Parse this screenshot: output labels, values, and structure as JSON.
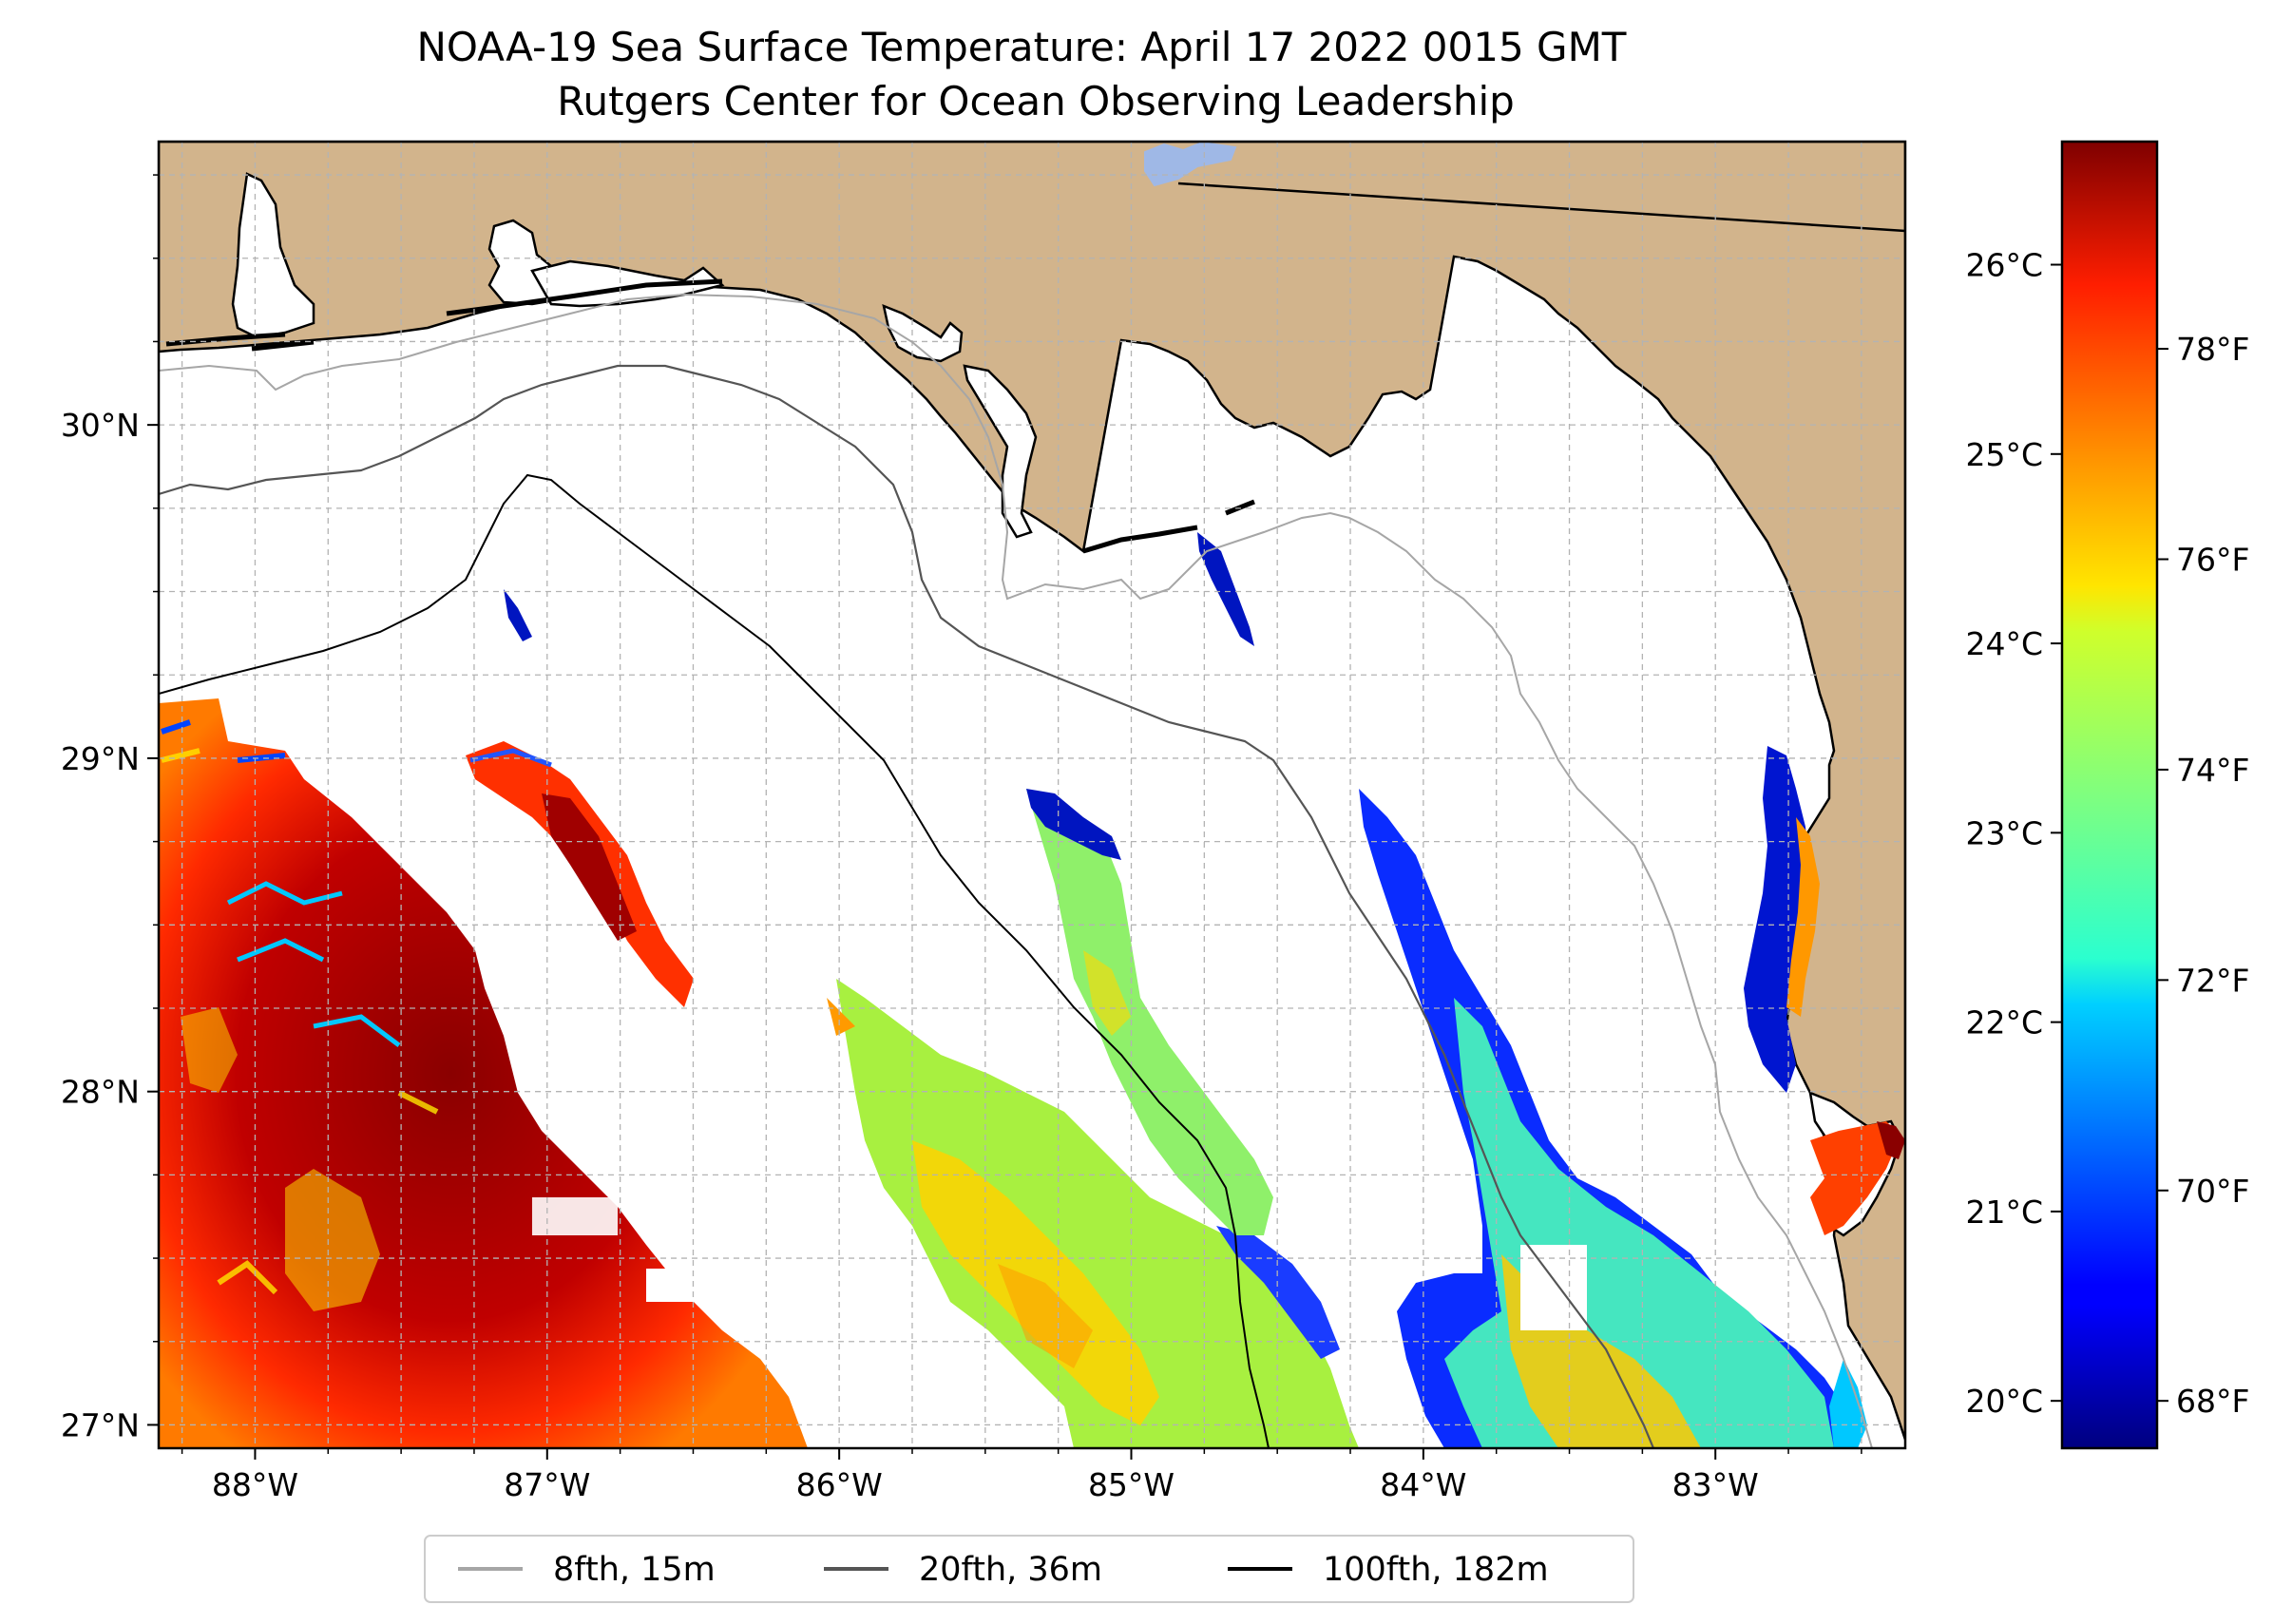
{
  "title": {
    "line1": "NOAA-19 Sea Surface Temperature: April 17 2022 0015 GMT",
    "line2": "Rutgers Center for Ocean Observing Leadership"
  },
  "map": {
    "lon_range": [
      -88.33,
      -82.35
    ],
    "lat_range": [
      26.93,
      30.85
    ],
    "land_color": "#d2b48c",
    "water_color": "#ffffff",
    "lon_ticks": [
      {
        "value": -88,
        "label": "88°W"
      },
      {
        "value": -87,
        "label": "87°W"
      },
      {
        "value": -86,
        "label": "86°W"
      },
      {
        "value": -85,
        "label": "85°W"
      },
      {
        "value": -84,
        "label": "84°W"
      },
      {
        "value": -83,
        "label": "83°W"
      }
    ],
    "lat_ticks": [
      {
        "value": 27,
        "label": "27°N"
      },
      {
        "value": 28,
        "label": "28°N"
      },
      {
        "value": 29,
        "label": "29°N"
      },
      {
        "value": 30,
        "label": "30°N"
      }
    ],
    "gridlines": true
  },
  "colorbar": {
    "colormap": "jet",
    "range_c": [
      19.75,
      26.65
    ],
    "celsius_ticks": [
      {
        "value": 20,
        "label": "20°C"
      },
      {
        "value": 21,
        "label": "21°C"
      },
      {
        "value": 22,
        "label": "22°C"
      },
      {
        "value": 23,
        "label": "23°C"
      },
      {
        "value": 24,
        "label": "24°C"
      },
      {
        "value": 25,
        "label": "25°C"
      },
      {
        "value": 26,
        "label": "26°C"
      }
    ],
    "fahrenheit_ticks": [
      {
        "value": 68,
        "label": "68°F"
      },
      {
        "value": 70,
        "label": "70°F"
      },
      {
        "value": 72,
        "label": "72°F"
      },
      {
        "value": 74,
        "label": "74°F"
      },
      {
        "value": 76,
        "label": "76°F"
      },
      {
        "value": 78,
        "label": "78°F"
      }
    ]
  },
  "legend": {
    "placement": "bottom-center",
    "items": [
      {
        "label": "8fth, 15m",
        "color": "#a6a6a6"
      },
      {
        "label": "20fth, 36m",
        "color": "#555555"
      },
      {
        "label": "100fth, 182m",
        "color": "#000000"
      }
    ]
  }
}
